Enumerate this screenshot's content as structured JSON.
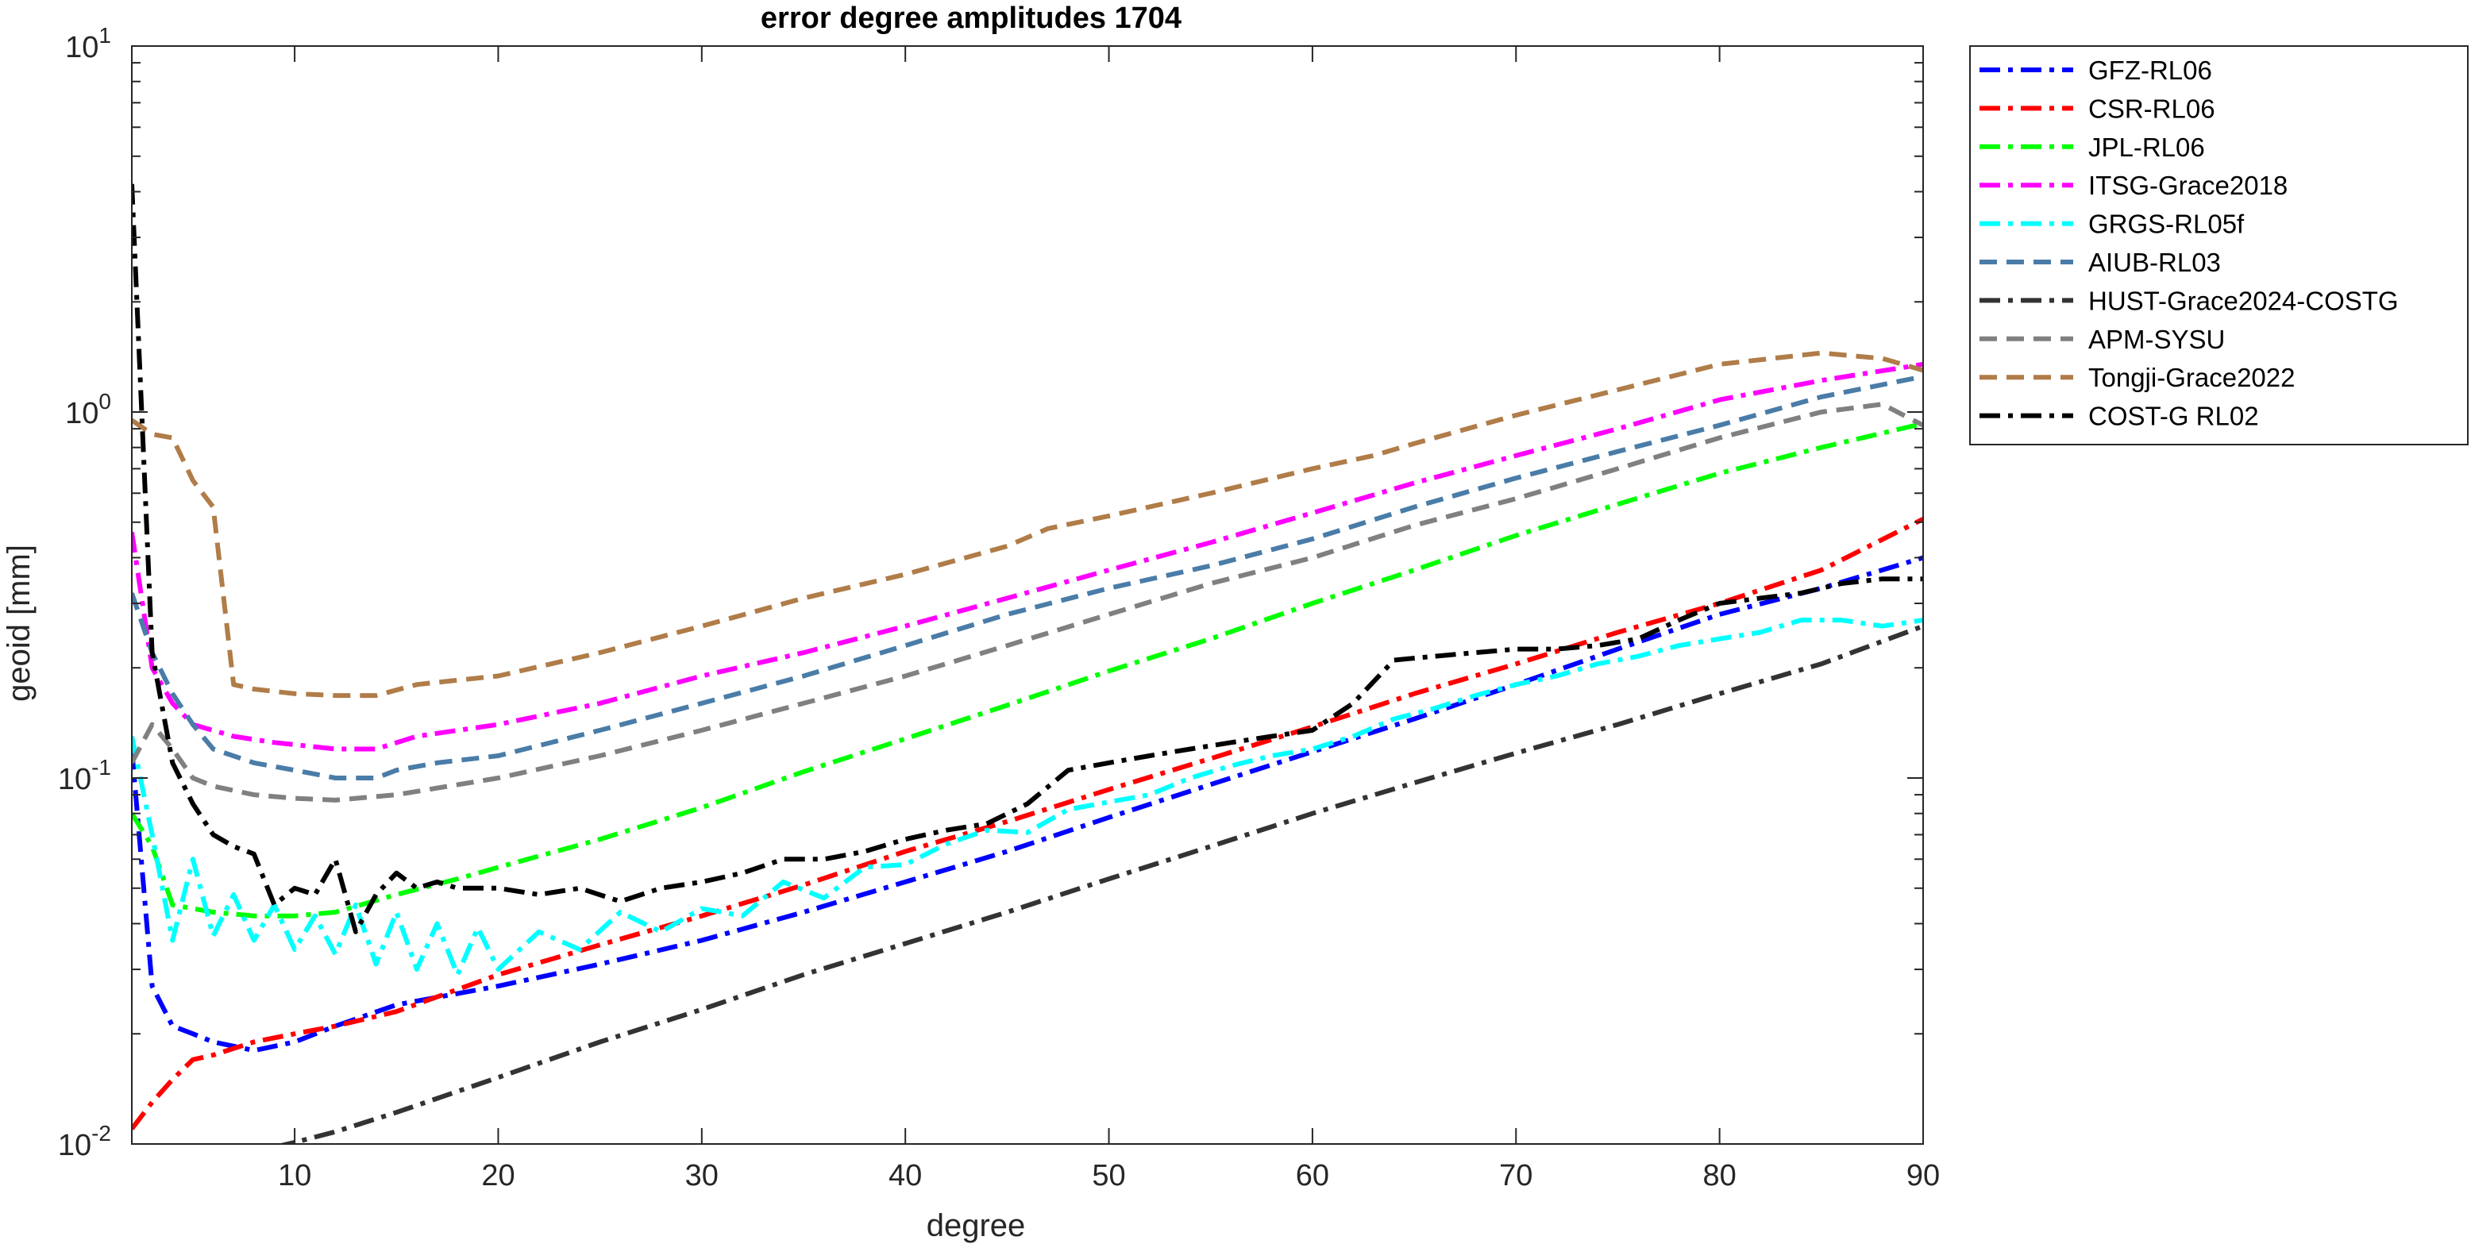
{
  "chart_data": {
    "type": "line",
    "title": "error degree amplitudes 1704",
    "xlabel": "degree",
    "ylabel": "geoid [mm]",
    "xlim": [
      2,
      90
    ],
    "ylim": [
      0.01,
      10
    ],
    "yscale": "log",
    "x_ticks": [
      10,
      20,
      30,
      40,
      50,
      60,
      70,
      80,
      90
    ],
    "y_ticks": [
      {
        "value": 0.01,
        "base": "10",
        "exp": "-2"
      },
      {
        "value": 0.1,
        "base": "10",
        "exp": "-1"
      },
      {
        "value": 1,
        "base": "10",
        "exp": "0"
      },
      {
        "value": 10,
        "base": "10",
        "exp": "1"
      }
    ],
    "grid": false,
    "legend_position": "outside-right",
    "series": [
      {
        "name": "GFZ-RL06",
        "color": "#0000ff",
        "dash": "dashdot",
        "points": [
          [
            2,
            0.12
          ],
          [
            3,
            0.027
          ],
          [
            4,
            0.021
          ],
          [
            5,
            0.02
          ],
          [
            6,
            0.019
          ],
          [
            7,
            0.0185
          ],
          [
            8,
            0.018
          ],
          [
            10,
            0.019
          ],
          [
            12,
            0.021
          ],
          [
            15,
            0.024
          ],
          [
            20,
            0.027
          ],
          [
            25,
            0.031
          ],
          [
            30,
            0.036
          ],
          [
            35,
            0.043
          ],
          [
            40,
            0.052
          ],
          [
            45,
            0.063
          ],
          [
            50,
            0.078
          ],
          [
            55,
            0.096
          ],
          [
            60,
            0.118
          ],
          [
            65,
            0.145
          ],
          [
            70,
            0.18
          ],
          [
            75,
            0.225
          ],
          [
            80,
            0.28
          ],
          [
            85,
            0.33
          ],
          [
            90,
            0.4
          ]
        ]
      },
      {
        "name": "CSR-RL06",
        "color": "#ff0000",
        "dash": "dashdot",
        "points": [
          [
            2,
            0.011
          ],
          [
            3,
            0.013
          ],
          [
            4,
            0.015
          ],
          [
            5,
            0.017
          ],
          [
            6,
            0.0175
          ],
          [
            8,
            0.019
          ],
          [
            10,
            0.02
          ],
          [
            12,
            0.021
          ],
          [
            15,
            0.023
          ],
          [
            20,
            0.029
          ],
          [
            25,
            0.035
          ],
          [
            30,
            0.042
          ],
          [
            35,
            0.051
          ],
          [
            40,
            0.063
          ],
          [
            45,
            0.076
          ],
          [
            50,
            0.093
          ],
          [
            55,
            0.113
          ],
          [
            60,
            0.138
          ],
          [
            65,
            0.17
          ],
          [
            70,
            0.205
          ],
          [
            75,
            0.25
          ],
          [
            80,
            0.3
          ],
          [
            85,
            0.37
          ],
          [
            90,
            0.51
          ]
        ]
      },
      {
        "name": "JPL-RL06",
        "color": "#00ff00",
        "dash": "dashdot",
        "points": [
          [
            2,
            0.08
          ],
          [
            3,
            0.065
          ],
          [
            4,
            0.045
          ],
          [
            6,
            0.043
          ],
          [
            8,
            0.042
          ],
          [
            10,
            0.042
          ],
          [
            12,
            0.043
          ],
          [
            15,
            0.048
          ],
          [
            18,
            0.053
          ],
          [
            20,
            0.057
          ],
          [
            25,
            0.068
          ],
          [
            30,
            0.083
          ],
          [
            35,
            0.104
          ],
          [
            40,
            0.128
          ],
          [
            45,
            0.158
          ],
          [
            50,
            0.196
          ],
          [
            55,
            0.24
          ],
          [
            60,
            0.3
          ],
          [
            65,
            0.37
          ],
          [
            70,
            0.46
          ],
          [
            75,
            0.56
          ],
          [
            80,
            0.68
          ],
          [
            85,
            0.8
          ],
          [
            90,
            0.93
          ]
        ]
      },
      {
        "name": "ITSG-Grace2018",
        "color": "#ff00ff",
        "dash": "dashdot",
        "points": [
          [
            2,
            0.47
          ],
          [
            3,
            0.2
          ],
          [
            4,
            0.16
          ],
          [
            5,
            0.14
          ],
          [
            7,
            0.13
          ],
          [
            9,
            0.125
          ],
          [
            12,
            0.12
          ],
          [
            14,
            0.12
          ],
          [
            16,
            0.13
          ],
          [
            20,
            0.14
          ],
          [
            25,
            0.16
          ],
          [
            30,
            0.19
          ],
          [
            35,
            0.22
          ],
          [
            40,
            0.26
          ],
          [
            45,
            0.31
          ],
          [
            50,
            0.37
          ],
          [
            55,
            0.44
          ],
          [
            60,
            0.53
          ],
          [
            65,
            0.64
          ],
          [
            70,
            0.76
          ],
          [
            75,
            0.9
          ],
          [
            80,
            1.08
          ],
          [
            85,
            1.22
          ],
          [
            90,
            1.35
          ]
        ]
      },
      {
        "name": "GRGS-RL05f",
        "color": "#00ffff",
        "dash": "dashdot",
        "points": [
          [
            2,
            0.13
          ],
          [
            3,
            0.07
          ],
          [
            4,
            0.036
          ],
          [
            5,
            0.06
          ],
          [
            6,
            0.037
          ],
          [
            7,
            0.048
          ],
          [
            8,
            0.036
          ],
          [
            9,
            0.045
          ],
          [
            10,
            0.034
          ],
          [
            11,
            0.042
          ],
          [
            12,
            0.033
          ],
          [
            13,
            0.045
          ],
          [
            14,
            0.031
          ],
          [
            15,
            0.043
          ],
          [
            16,
            0.03
          ],
          [
            17,
            0.04
          ],
          [
            18,
            0.029
          ],
          [
            19,
            0.039
          ],
          [
            20,
            0.03
          ],
          [
            22,
            0.038
          ],
          [
            24,
            0.034
          ],
          [
            26,
            0.043
          ],
          [
            28,
            0.038
          ],
          [
            30,
            0.044
          ],
          [
            32,
            0.042
          ],
          [
            34,
            0.052
          ],
          [
            36,
            0.047
          ],
          [
            38,
            0.057
          ],
          [
            40,
            0.058
          ],
          [
            42,
            0.066
          ],
          [
            44,
            0.072
          ],
          [
            46,
            0.071
          ],
          [
            48,
            0.082
          ],
          [
            50,
            0.086
          ],
          [
            52,
            0.09
          ],
          [
            54,
            0.1
          ],
          [
            56,
            0.108
          ],
          [
            58,
            0.115
          ],
          [
            60,
            0.12
          ],
          [
            62,
            0.13
          ],
          [
            64,
            0.145
          ],
          [
            66,
            0.155
          ],
          [
            68,
            0.168
          ],
          [
            70,
            0.18
          ],
          [
            72,
            0.19
          ],
          [
            74,
            0.205
          ],
          [
            76,
            0.215
          ],
          [
            78,
            0.23
          ],
          [
            80,
            0.24
          ],
          [
            82,
            0.25
          ],
          [
            84,
            0.27
          ],
          [
            86,
            0.27
          ],
          [
            88,
            0.26
          ],
          [
            90,
            0.27
          ]
        ]
      },
      {
        "name": "AIUB-RL03",
        "color": "#4a7ca8",
        "dash": "dashed",
        "points": [
          [
            2,
            0.32
          ],
          [
            3,
            0.22
          ],
          [
            4,
            0.17
          ],
          [
            5,
            0.14
          ],
          [
            6,
            0.12
          ],
          [
            8,
            0.11
          ],
          [
            10,
            0.105
          ],
          [
            12,
            0.1
          ],
          [
            14,
            0.1
          ],
          [
            15,
            0.105
          ],
          [
            17,
            0.11
          ],
          [
            20,
            0.115
          ],
          [
            25,
            0.135
          ],
          [
            30,
            0.16
          ],
          [
            35,
            0.19
          ],
          [
            40,
            0.23
          ],
          [
            45,
            0.28
          ],
          [
            50,
            0.33
          ],
          [
            55,
            0.38
          ],
          [
            60,
            0.45
          ],
          [
            65,
            0.55
          ],
          [
            70,
            0.66
          ],
          [
            75,
            0.78
          ],
          [
            80,
            0.92
          ],
          [
            85,
            1.1
          ],
          [
            90,
            1.25
          ]
        ]
      },
      {
        "name": "HUST-Grace2024-COSTG",
        "color": "#333333",
        "dash": "dashdot",
        "points": [
          [
            9,
            0.0098
          ],
          [
            10,
            0.0101
          ],
          [
            12,
            0.0108
          ],
          [
            15,
            0.0122
          ],
          [
            20,
            0.0152
          ],
          [
            25,
            0.019
          ],
          [
            30,
            0.0233
          ],
          [
            35,
            0.029
          ],
          [
            40,
            0.0353
          ],
          [
            45,
            0.043
          ],
          [
            50,
            0.053
          ],
          [
            55,
            0.065
          ],
          [
            60,
            0.08
          ],
          [
            65,
            0.097
          ],
          [
            70,
            0.117
          ],
          [
            75,
            0.14
          ],
          [
            80,
            0.17
          ],
          [
            85,
            0.205
          ],
          [
            90,
            0.26
          ]
        ]
      },
      {
        "name": "APM-SYSU",
        "color": "#808080",
        "dash": "dashed",
        "points": [
          [
            2,
            0.11
          ],
          [
            3,
            0.14
          ],
          [
            4,
            0.12
          ],
          [
            5,
            0.1
          ],
          [
            6,
            0.095
          ],
          [
            8,
            0.09
          ],
          [
            10,
            0.088
          ],
          [
            12,
            0.087
          ],
          [
            15,
            0.09
          ],
          [
            20,
            0.1
          ],
          [
            25,
            0.115
          ],
          [
            30,
            0.135
          ],
          [
            35,
            0.16
          ],
          [
            40,
            0.19
          ],
          [
            45,
            0.23
          ],
          [
            50,
            0.28
          ],
          [
            55,
            0.34
          ],
          [
            60,
            0.4
          ],
          [
            65,
            0.49
          ],
          [
            70,
            0.58
          ],
          [
            75,
            0.7
          ],
          [
            80,
            0.85
          ],
          [
            85,
            1.0
          ],
          [
            88,
            1.05
          ],
          [
            90,
            0.92
          ]
        ]
      },
      {
        "name": "Tongji-Grace2022",
        "color": "#b07c48",
        "dash": "dashed",
        "points": [
          [
            2,
            0.95
          ],
          [
            3,
            0.87
          ],
          [
            4,
            0.85
          ],
          [
            5,
            0.65
          ],
          [
            6,
            0.55
          ],
          [
            7,
            0.18
          ],
          [
            8,
            0.175
          ],
          [
            10,
            0.17
          ],
          [
            12,
            0.168
          ],
          [
            14,
            0.168
          ],
          [
            16,
            0.18
          ],
          [
            18,
            0.185
          ],
          [
            20,
            0.19
          ],
          [
            25,
            0.22
          ],
          [
            30,
            0.26
          ],
          [
            35,
            0.31
          ],
          [
            40,
            0.36
          ],
          [
            45,
            0.43
          ],
          [
            47,
            0.48
          ],
          [
            50,
            0.52
          ],
          [
            55,
            0.6
          ],
          [
            60,
            0.7
          ],
          [
            63,
            0.76
          ],
          [
            65,
            0.82
          ],
          [
            70,
            0.98
          ],
          [
            75,
            1.15
          ],
          [
            80,
            1.35
          ],
          [
            85,
            1.45
          ],
          [
            88,
            1.4
          ],
          [
            90,
            1.3
          ]
        ]
      },
      {
        "name": "COST-G RL02",
        "color": "#000000",
        "dash": "dashdot",
        "points": [
          [
            2,
            4.2
          ],
          [
            3,
            0.22
          ],
          [
            4,
            0.11
          ],
          [
            5,
            0.085
          ],
          [
            6,
            0.07
          ],
          [
            7,
            0.065
          ],
          [
            8,
            0.062
          ],
          [
            9,
            0.045
          ],
          [
            10,
            0.05
          ],
          [
            11,
            0.048
          ],
          [
            12,
            0.06
          ],
          [
            13,
            0.038
          ],
          [
            14,
            0.048
          ],
          [
            15,
            0.055
          ],
          [
            16,
            0.05
          ],
          [
            17,
            0.052
          ],
          [
            18,
            0.05
          ],
          [
            20,
            0.05
          ],
          [
            22,
            0.048
          ],
          [
            24,
            0.05
          ],
          [
            26,
            0.046
          ],
          [
            28,
            0.05
          ],
          [
            30,
            0.052
          ],
          [
            32,
            0.055
          ],
          [
            34,
            0.06
          ],
          [
            36,
            0.06
          ],
          [
            38,
            0.063
          ],
          [
            40,
            0.068
          ],
          [
            42,
            0.072
          ],
          [
            44,
            0.075
          ],
          [
            46,
            0.085
          ],
          [
            48,
            0.105
          ],
          [
            50,
            0.11
          ],
          [
            52,
            0.115
          ],
          [
            54,
            0.12
          ],
          [
            56,
            0.125
          ],
          [
            58,
            0.13
          ],
          [
            60,
            0.135
          ],
          [
            62,
            0.16
          ],
          [
            64,
            0.21
          ],
          [
            66,
            0.215
          ],
          [
            68,
            0.22
          ],
          [
            70,
            0.225
          ],
          [
            72,
            0.225
          ],
          [
            74,
            0.23
          ],
          [
            76,
            0.24
          ],
          [
            78,
            0.27
          ],
          [
            80,
            0.3
          ],
          [
            82,
            0.31
          ],
          [
            84,
            0.32
          ],
          [
            86,
            0.34
          ],
          [
            88,
            0.35
          ],
          [
            90,
            0.35
          ]
        ]
      }
    ]
  }
}
